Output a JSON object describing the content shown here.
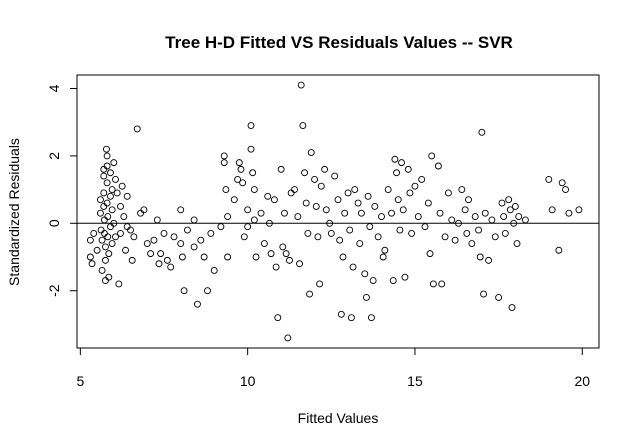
{
  "chart_data": {
    "type": "scatter",
    "title": "Tree H-D Fitted VS Residuals Values -- SVR",
    "xlabel": "Fitted Values",
    "ylabel": "Standardized Residuals",
    "xlim": [
      4.9,
      20.5
    ],
    "ylim": [
      -3.7,
      4.4
    ],
    "x_ticks": [
      5,
      10,
      15,
      20
    ],
    "y_ticks": [
      -2,
      0,
      2,
      4
    ],
    "reference_line_y": 0,
    "point_style": "open-circle",
    "points": [
      [
        5.3,
        -0.5
      ],
      [
        5.3,
        -1.0
      ],
      [
        5.35,
        -1.2
      ],
      [
        5.4,
        -0.3
      ],
      [
        5.5,
        -0.8
      ],
      [
        5.6,
        0.7
      ],
      [
        5.6,
        0.3
      ],
      [
        5.62,
        -0.2
      ],
      [
        5.65,
        -0.5
      ],
      [
        5.65,
        -1.4
      ],
      [
        5.7,
        1.6
      ],
      [
        5.7,
        1.4
      ],
      [
        5.7,
        0.9
      ],
      [
        5.7,
        0.5
      ],
      [
        5.72,
        0.1
      ],
      [
        5.72,
        -0.3
      ],
      [
        5.75,
        -0.7
      ],
      [
        5.75,
        -1.1
      ],
      [
        5.75,
        -1.7
      ],
      [
        5.78,
        2.2
      ],
      [
        5.8,
        2.0
      ],
      [
        5.8,
        1.7
      ],
      [
        5.8,
        1.2
      ],
      [
        5.8,
        0.6
      ],
      [
        5.82,
        0.2
      ],
      [
        5.82,
        -0.4
      ],
      [
        5.85,
        -0.9
      ],
      [
        5.85,
        -1.6
      ],
      [
        5.9,
        1.5
      ],
      [
        5.9,
        0.8
      ],
      [
        5.9,
        -0.1
      ],
      [
        5.95,
        1.0
      ],
      [
        5.95,
        0.4
      ],
      [
        5.95,
        -0.6
      ],
      [
        6.0,
        1.8
      ],
      [
        6.0,
        0.0
      ],
      [
        6.05,
        1.3
      ],
      [
        6.05,
        -0.4
      ],
      [
        6.1,
        0.9
      ],
      [
        6.15,
        -1.8
      ],
      [
        6.2,
        0.5
      ],
      [
        6.2,
        -0.3
      ],
      [
        6.25,
        1.1
      ],
      [
        6.3,
        0.2
      ],
      [
        6.35,
        -0.8
      ],
      [
        6.4,
        0.8
      ],
      [
        6.4,
        -0.1
      ],
      [
        6.5,
        -0.2
      ],
      [
        6.55,
        -1.1
      ],
      [
        6.6,
        -0.4
      ],
      [
        6.7,
        2.8
      ],
      [
        6.8,
        0.3
      ],
      [
        6.9,
        0.4
      ],
      [
        7.0,
        -0.6
      ],
      [
        7.1,
        -0.9
      ],
      [
        7.2,
        -0.5
      ],
      [
        7.3,
        0.1
      ],
      [
        7.35,
        -1.2
      ],
      [
        7.4,
        -0.9
      ],
      [
        7.5,
        -0.3
      ],
      [
        7.6,
        -1.1
      ],
      [
        7.7,
        -1.3
      ],
      [
        7.8,
        -0.4
      ],
      [
        8.0,
        0.4
      ],
      [
        8.0,
        -0.6
      ],
      [
        8.05,
        -1.0
      ],
      [
        8.1,
        -2.0
      ],
      [
        8.2,
        -0.2
      ],
      [
        8.4,
        0.1
      ],
      [
        8.4,
        -0.7
      ],
      [
        8.5,
        -2.4
      ],
      [
        8.6,
        -0.5
      ],
      [
        8.7,
        -1.0
      ],
      [
        8.8,
        -2.0
      ],
      [
        8.9,
        -0.3
      ],
      [
        9.0,
        -1.4
      ],
      [
        9.2,
        -0.1
      ],
      [
        9.3,
        2.0
      ],
      [
        9.3,
        1.8
      ],
      [
        9.35,
        1.0
      ],
      [
        9.4,
        0.2
      ],
      [
        9.4,
        -1.0
      ],
      [
        9.6,
        0.7
      ],
      [
        9.7,
        1.3
      ],
      [
        9.75,
        1.8
      ],
      [
        9.8,
        1.6
      ],
      [
        9.85,
        1.2
      ],
      [
        9.9,
        -0.4
      ],
      [
        10.0,
        0.4
      ],
      [
        10.0,
        -0.1
      ],
      [
        10.1,
        2.9
      ],
      [
        10.1,
        2.2
      ],
      [
        10.15,
        1.5
      ],
      [
        10.2,
        1.0
      ],
      [
        10.2,
        0.1
      ],
      [
        10.25,
        -1.0
      ],
      [
        10.4,
        0.3
      ],
      [
        10.5,
        -0.6
      ],
      [
        10.6,
        0.8
      ],
      [
        10.65,
        0.0
      ],
      [
        10.7,
        -0.9
      ],
      [
        10.8,
        0.7
      ],
      [
        10.85,
        -1.3
      ],
      [
        10.9,
        -2.8
      ],
      [
        11.0,
        1.6
      ],
      [
        11.05,
        -0.7
      ],
      [
        11.1,
        0.3
      ],
      [
        11.15,
        -0.9
      ],
      [
        11.2,
        -3.4
      ],
      [
        11.25,
        -1.1
      ],
      [
        11.3,
        0.9
      ],
      [
        11.4,
        1.0
      ],
      [
        11.5,
        0.2
      ],
      [
        11.55,
        -1.2
      ],
      [
        11.6,
        4.1
      ],
      [
        11.65,
        2.9
      ],
      [
        11.7,
        1.5
      ],
      [
        11.75,
        0.6
      ],
      [
        11.8,
        -0.3
      ],
      [
        11.85,
        -2.1
      ],
      [
        11.9,
        2.1
      ],
      [
        12.0,
        1.3
      ],
      [
        12.05,
        0.5
      ],
      [
        12.1,
        -0.4
      ],
      [
        12.15,
        -1.8
      ],
      [
        12.2,
        1.1
      ],
      [
        12.3,
        1.6
      ],
      [
        12.35,
        0.4
      ],
      [
        12.45,
        0.0
      ],
      [
        12.5,
        -0.3
      ],
      [
        12.6,
        1.4
      ],
      [
        12.7,
        0.7
      ],
      [
        12.75,
        -0.5
      ],
      [
        12.8,
        -2.7
      ],
      [
        12.85,
        -1.0
      ],
      [
        12.9,
        0.3
      ],
      [
        13.0,
        0.9
      ],
      [
        13.05,
        -0.2
      ],
      [
        13.1,
        -2.8
      ],
      [
        13.15,
        -1.3
      ],
      [
        13.2,
        1.0
      ],
      [
        13.3,
        0.6
      ],
      [
        13.35,
        -0.6
      ],
      [
        13.4,
        0.3
      ],
      [
        13.5,
        -1.5
      ],
      [
        13.55,
        -2.2
      ],
      [
        13.6,
        0.8
      ],
      [
        13.65,
        -0.1
      ],
      [
        13.7,
        -2.8
      ],
      [
        13.75,
        -1.7
      ],
      [
        13.8,
        0.5
      ],
      [
        13.9,
        -0.4
      ],
      [
        14.0,
        0.2
      ],
      [
        14.05,
        -1.0
      ],
      [
        14.1,
        -0.8
      ],
      [
        14.2,
        1.0
      ],
      [
        14.3,
        0.3
      ],
      [
        14.35,
        -1.7
      ],
      [
        14.4,
        1.9
      ],
      [
        14.45,
        1.5
      ],
      [
        14.5,
        0.7
      ],
      [
        14.55,
        -0.2
      ],
      [
        14.6,
        1.8
      ],
      [
        14.65,
        0.4
      ],
      [
        14.7,
        -1.6
      ],
      [
        14.8,
        1.6
      ],
      [
        14.85,
        0.9
      ],
      [
        14.9,
        -0.3
      ],
      [
        15.0,
        1.1
      ],
      [
        15.1,
        0.2
      ],
      [
        15.2,
        1.3
      ],
      [
        15.3,
        -0.1
      ],
      [
        15.4,
        0.6
      ],
      [
        15.45,
        -0.9
      ],
      [
        15.5,
        2.0
      ],
      [
        15.55,
        -1.8
      ],
      [
        15.7,
        1.7
      ],
      [
        15.75,
        0.3
      ],
      [
        15.8,
        -1.8
      ],
      [
        15.9,
        -0.4
      ],
      [
        16.0,
        0.9
      ],
      [
        16.1,
        0.1
      ],
      [
        16.2,
        -0.5
      ],
      [
        16.3,
        0.0
      ],
      [
        16.4,
        1.0
      ],
      [
        16.5,
        0.4
      ],
      [
        16.55,
        -0.3
      ],
      [
        16.6,
        0.7
      ],
      [
        16.7,
        -0.6
      ],
      [
        16.8,
        0.2
      ],
      [
        16.9,
        -0.2
      ],
      [
        16.95,
        -1.0
      ],
      [
        17.0,
        2.7
      ],
      [
        17.05,
        -2.1
      ],
      [
        17.1,
        0.3
      ],
      [
        17.2,
        -1.1
      ],
      [
        17.3,
        0.1
      ],
      [
        17.4,
        -0.4
      ],
      [
        17.5,
        -2.2
      ],
      [
        17.6,
        0.6
      ],
      [
        17.65,
        0.2
      ],
      [
        17.7,
        -0.3
      ],
      [
        17.8,
        0.7
      ],
      [
        17.85,
        0.4
      ],
      [
        17.9,
        -2.5
      ],
      [
        17.95,
        0.0
      ],
      [
        18.0,
        0.5
      ],
      [
        18.05,
        -0.6
      ],
      [
        18.1,
        0.2
      ],
      [
        18.3,
        0.1
      ],
      [
        19.0,
        1.3
      ],
      [
        19.1,
        0.4
      ],
      [
        19.3,
        -0.8
      ],
      [
        19.4,
        1.2
      ],
      [
        19.5,
        1.0
      ],
      [
        19.6,
        0.3
      ],
      [
        19.9,
        0.4
      ]
    ]
  }
}
